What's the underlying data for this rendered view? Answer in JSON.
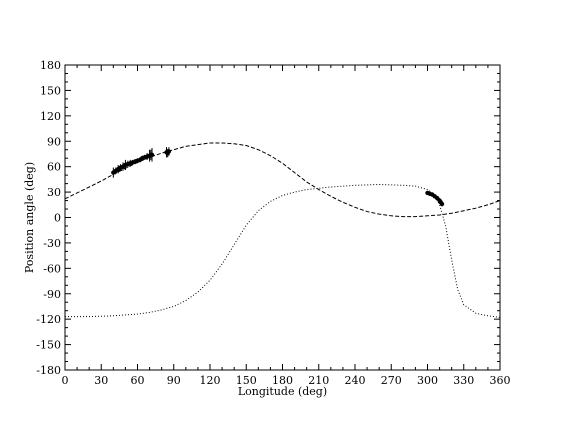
{
  "chart_data": {
    "type": "scatter",
    "title": "",
    "xlabel": "Longitude (deg)",
    "ylabel": "Position angle (deg)",
    "xlim": [
      0,
      360
    ],
    "ylim": [
      -180,
      180
    ],
    "x_ticks": [
      0,
      30,
      60,
      90,
      120,
      150,
      180,
      210,
      240,
      270,
      300,
      330,
      360
    ],
    "y_ticks": [
      -180,
      -150,
      -120,
      -90,
      -60,
      -30,
      0,
      30,
      60,
      90,
      120,
      150,
      180
    ],
    "grid": false,
    "series": [
      {
        "style": "dashed-line",
        "x": [
          0,
          10,
          20,
          30,
          40,
          50,
          60,
          70,
          80,
          90,
          100,
          110,
          120,
          130,
          140,
          150,
          160,
          170,
          180,
          190,
          200,
          210,
          220,
          230,
          240,
          250,
          260,
          270,
          280,
          290,
          300,
          310,
          320,
          330,
          340,
          350,
          360
        ],
        "y": [
          22,
          29,
          36,
          43,
          51,
          58,
          65,
          71,
          76,
          80,
          84,
          86,
          88,
          88,
          87,
          85,
          80,
          73,
          64,
          53,
          42,
          33,
          25,
          18,
          12,
          7,
          4,
          2,
          1,
          1,
          2,
          3,
          5,
          8,
          11,
          15,
          20
        ]
      },
      {
        "style": "dotted-line",
        "x": [
          0,
          20,
          40,
          60,
          70,
          80,
          90,
          100,
          110,
          120,
          130,
          140,
          150,
          160,
          170,
          180,
          190,
          200,
          220,
          240,
          260,
          280,
          290,
          300,
          305,
          310,
          315,
          320,
          325,
          330,
          340,
          350,
          360
        ],
        "y": [
          -117,
          -117,
          -116,
          -114,
          -112,
          -109,
          -105,
          -98,
          -88,
          -74,
          -55,
          -32,
          -9,
          8,
          19,
          26,
          30,
          33,
          36,
          38,
          39,
          38,
          37,
          33,
          28,
          15,
          -10,
          -50,
          -85,
          -103,
          -113,
          -116,
          -118
        ]
      },
      {
        "style": "data-points",
        "x": [
          40,
          42,
          44,
          46,
          48,
          50,
          52,
          54,
          56,
          58,
          60,
          62,
          64,
          66,
          68,
          70,
          71,
          72,
          84,
          85,
          86,
          300,
          302,
          304,
          306,
          308,
          310,
          311,
          312
        ],
        "y": [
          53,
          55,
          57,
          59,
          60,
          62,
          63,
          64,
          65,
          66,
          67,
          68,
          70,
          71,
          72,
          73,
          74,
          74,
          77,
          76,
          78,
          29,
          28,
          27,
          25,
          23,
          20,
          18,
          16
        ],
        "yerr": [
          6,
          4,
          5,
          4,
          5,
          6,
          4,
          4,
          3,
          3,
          3,
          3,
          3,
          3,
          4,
          7,
          6,
          8,
          6,
          5,
          5,
          2,
          2,
          2,
          2,
          2,
          3,
          3,
          3
        ]
      }
    ]
  }
}
